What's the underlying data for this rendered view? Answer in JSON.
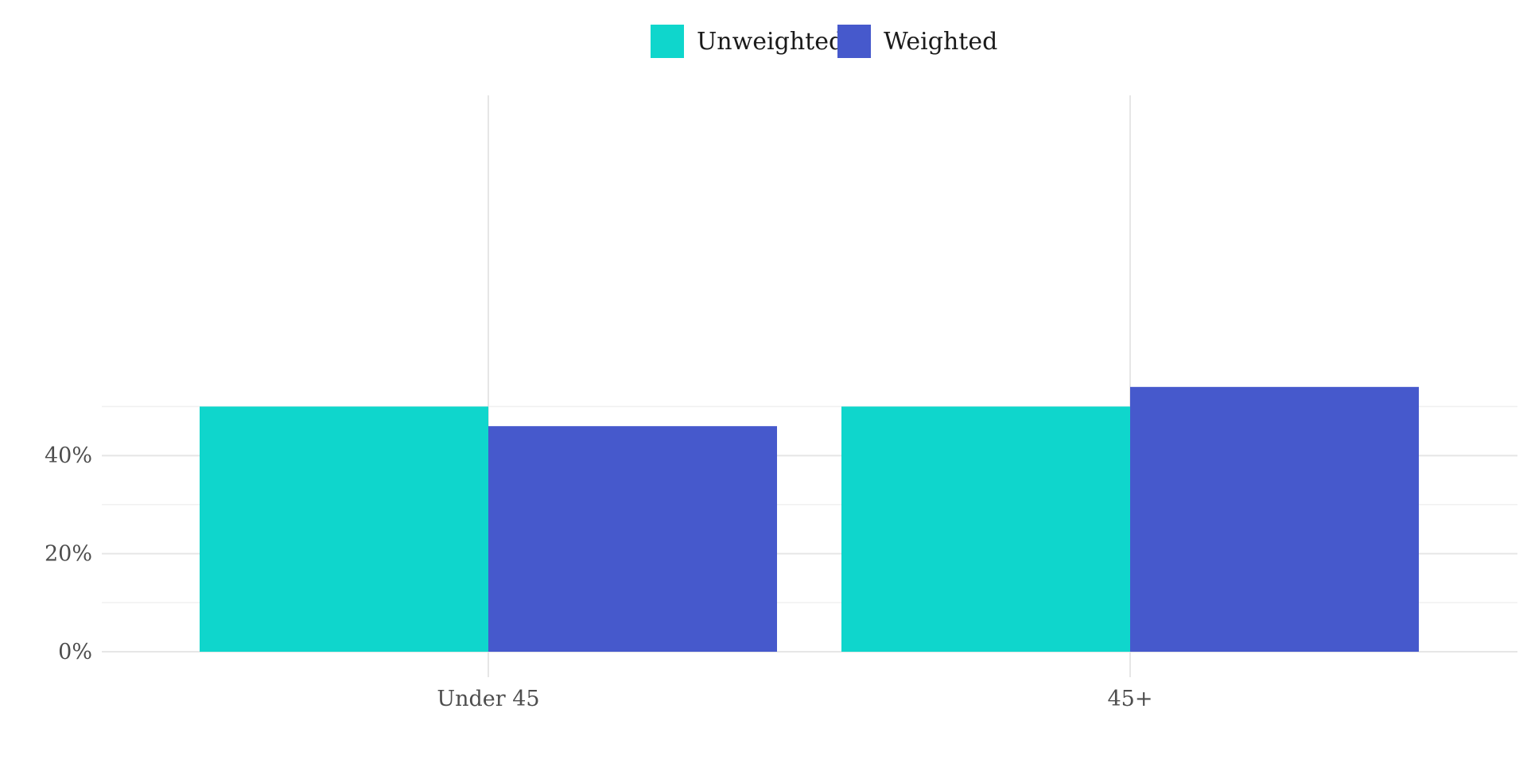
{
  "chart_data": {
    "type": "bar",
    "categories": [
      "Under 45",
      "45+"
    ],
    "series": [
      {
        "name": "Unweighted",
        "color": "#0fd6cc",
        "values": [
          50.0,
          50.0
        ]
      },
      {
        "name": "Weighted",
        "color": "#4659cc",
        "values": [
          46.0,
          54.0
        ]
      }
    ],
    "title": "",
    "xlabel": "",
    "ylabel": "",
    "ylim": [
      0,
      58
    ],
    "y_ticks": [
      {
        "value": 0,
        "label": "0%"
      },
      {
        "value": 20,
        "label": "20%"
      },
      {
        "value": 40,
        "label": "40%"
      }
    ],
    "y_minor_ticks": [
      10,
      30,
      50
    ],
    "grid": true,
    "legend_position": "top-center"
  }
}
